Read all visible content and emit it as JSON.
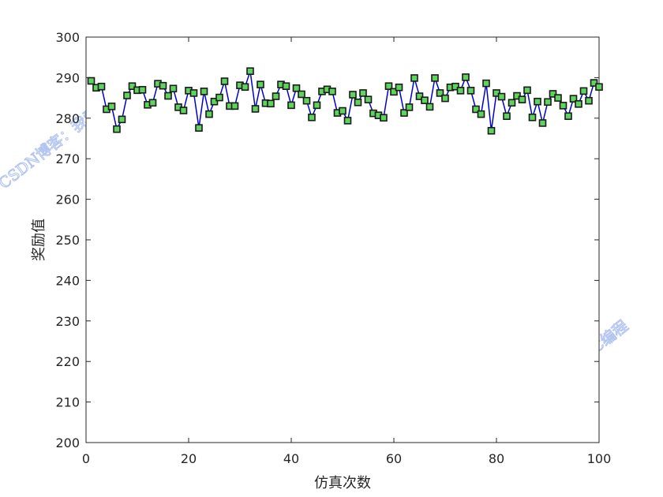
{
  "chart_data": {
    "type": "line",
    "xlabel": "仿真次数",
    "ylabel": "奖励值",
    "xlim": [
      0,
      100
    ],
    "ylim": [
      200,
      300
    ],
    "xticks": [
      0,
      20,
      40,
      60,
      80,
      100
    ],
    "yticks": [
      200,
      210,
      220,
      230,
      240,
      250,
      260,
      270,
      280,
      290,
      300
    ],
    "grid": false,
    "series": [
      {
        "line_color": "#0000cc",
        "marker": "square",
        "marker_fill": "#5ed35e",
        "marker_edge": "#1a1a1a",
        "x": [
          1,
          2,
          3,
          4,
          5,
          6,
          7,
          8,
          9,
          10,
          11,
          12,
          13,
          14,
          15,
          16,
          17,
          18,
          19,
          20,
          21,
          22,
          23,
          24,
          25,
          26,
          27,
          28,
          29,
          30,
          31,
          32,
          33,
          34,
          35,
          36,
          37,
          38,
          39,
          40,
          41,
          42,
          43,
          44,
          45,
          46,
          47,
          48,
          49,
          50,
          51,
          52,
          53,
          54,
          55,
          56,
          57,
          58,
          59,
          60,
          61,
          62,
          63,
          64,
          65,
          66,
          67,
          68,
          69,
          70,
          71,
          72,
          73,
          74,
          75,
          76,
          77,
          78,
          79,
          80,
          81,
          82,
          83,
          84,
          85,
          86,
          87,
          88,
          89,
          90,
          91,
          92,
          93,
          94,
          95,
          96,
          97,
          98,
          99,
          100
        ],
        "y": [
          289.2,
          287.5,
          287.8,
          282.2,
          282.9,
          277.3,
          279.7,
          285.6,
          287.9,
          286.9,
          287.0,
          283.3,
          283.8,
          288.5,
          288.0,
          285.5,
          287.3,
          282.7,
          281.9,
          286.8,
          286.2,
          277.6,
          286.6,
          281.0,
          284.1,
          285.1,
          289.1,
          283.0,
          283.0,
          288.1,
          287.7,
          291.6,
          282.3,
          288.3,
          283.7,
          283.6,
          285.4,
          288.3,
          287.9,
          283.2,
          287.4,
          285.9,
          284.3,
          280.2,
          283.2,
          286.6,
          287.1,
          286.6,
          281.3,
          281.8,
          279.4,
          285.8,
          283.9,
          286.2,
          284.6,
          281.2,
          280.7,
          280.1,
          287.9,
          286.5,
          287.6,
          281.3,
          282.7,
          289.9,
          285.4,
          284.4,
          282.8,
          289.9,
          286.2,
          284.9,
          287.6,
          287.8,
          286.8,
          290.1,
          286.8,
          282.2,
          281.0,
          288.6,
          276.9,
          286.2,
          285.3,
          280.5,
          283.8,
          285.5,
          284.6,
          286.9,
          280.2,
          284.1,
          278.8,
          284.0,
          286.0,
          285.0,
          283.1,
          280.5,
          284.8,
          283.5,
          286.7,
          284.3,
          288.7,
          287.7
        ]
      }
    ]
  },
  "watermark_text": "CSDN博客：我爱C编程"
}
